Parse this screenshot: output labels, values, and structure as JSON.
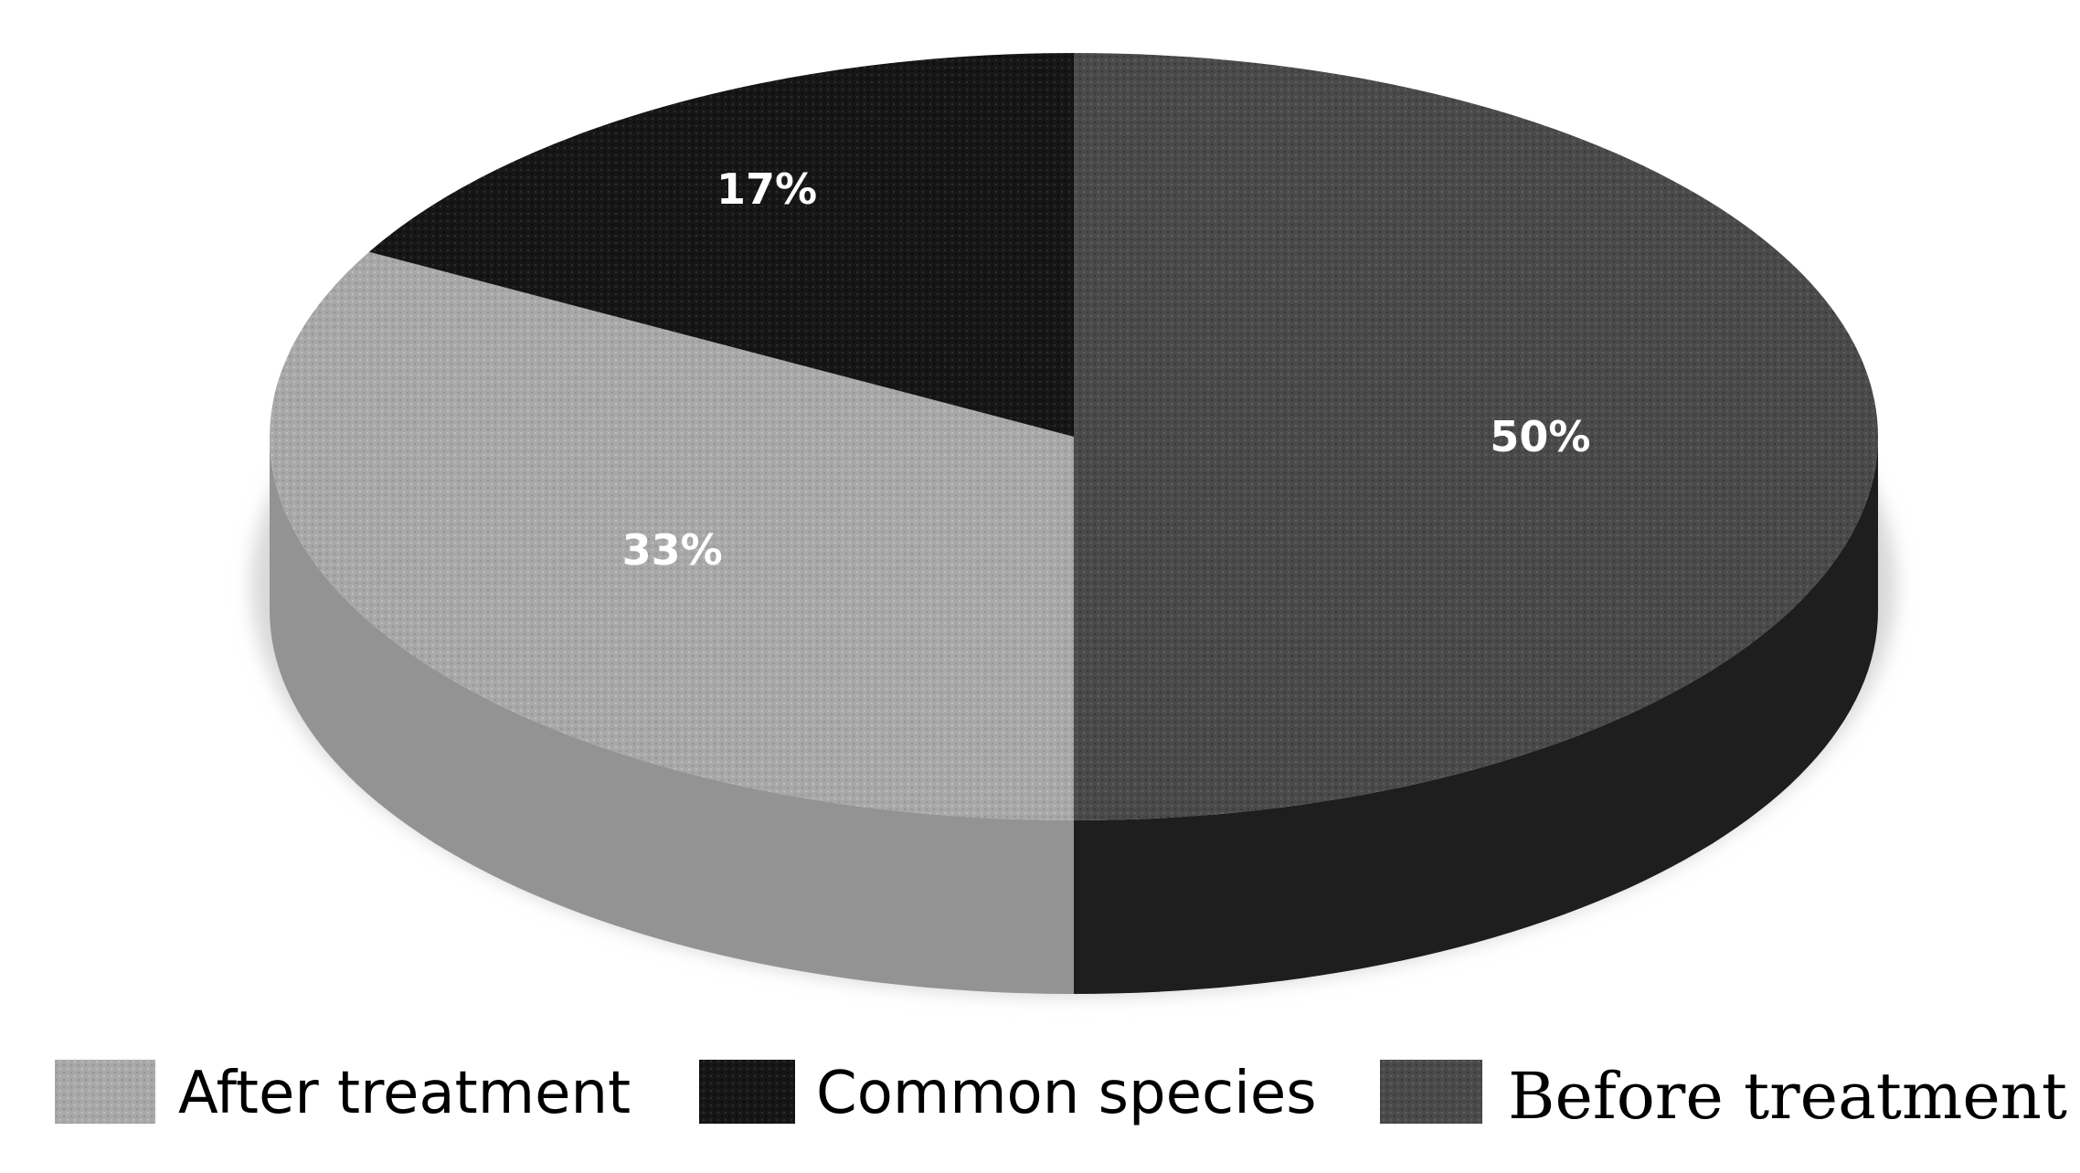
{
  "chart_data": {
    "type": "pie",
    "title": "",
    "slices": [
      {
        "name": "Before treatment",
        "value": 50,
        "label": "50%",
        "color": "#4a4a4a"
      },
      {
        "name": "After treatment",
        "value": 33,
        "label": "33%",
        "color": "#a8a8a8"
      },
      {
        "name": "Common species",
        "value": 17,
        "label": "17%",
        "color": "#161616"
      }
    ],
    "legend": {
      "placement": "bottom",
      "items": [
        "After treatment",
        "Common species",
        "Before treatment"
      ]
    },
    "style": "3d"
  }
}
